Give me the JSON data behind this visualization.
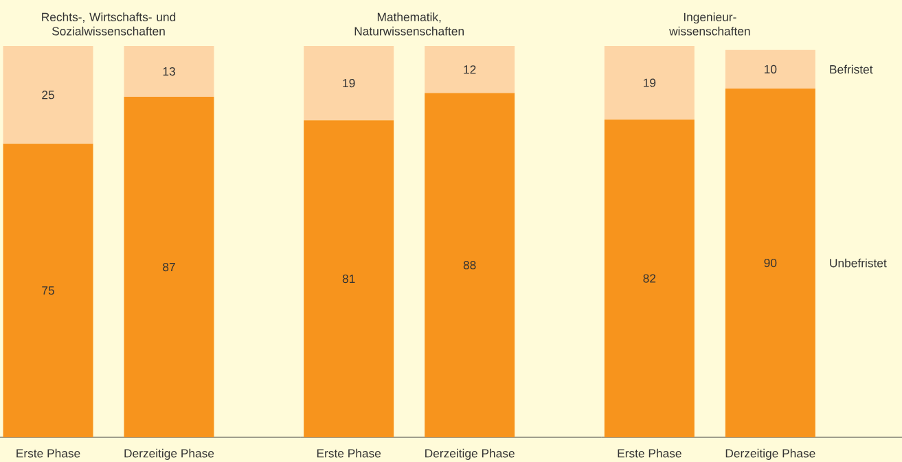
{
  "chart_data": [
    {
      "type": "bar",
      "title": "Rechts-, Wirtschafts- und Sozialwissenschaften",
      "categories": [
        "Erste Phase",
        "Derzeitige Phase"
      ],
      "stacked": true,
      "tick_labels": "x",
      "series": [
        {
          "color": "#f7941d",
          "values": [
            75,
            87
          ],
          "value_labels": [
            "75",
            "87"
          ]
        },
        {
          "color": "#fdd5a6",
          "values": [
            25,
            13
          ],
          "value_labels": [
            "25",
            "13"
          ]
        }
      ]
    },
    {
      "type": "bar",
      "title": "Mathematik, Naturwissenschaften",
      "categories": [
        "Erste Phase",
        "Derzeitige Phase"
      ],
      "stacked": true,
      "tick_labels": "x",
      "series": [
        {
          "color": "#f7941d",
          "values": [
            81,
            88
          ],
          "value_labels": [
            "81",
            "88"
          ]
        },
        {
          "color": "#fdd5a6",
          "values": [
            19,
            12
          ],
          "value_labels": [
            "19",
            "12"
          ]
        }
      ]
    },
    {
      "type": "bar",
      "title": "Ingenieur-wissenschaften",
      "categories": [
        "Erste Phase",
        "Derzeitige Phase"
      ],
      "stacked": true,
      "tick_labels": "x",
      "series": [
        {
          "name": "Unbefristet",
          "color": "#f7941d",
          "values": [
            82,
            90
          ],
          "value_labels": [
            "82",
            "90"
          ]
        },
        {
          "name": "Befristet",
          "color": "#fdd5a6",
          "values": [
            19,
            10
          ],
          "value_labels": [
            "19",
            "10"
          ]
        }
      ]
    }
  ]
}
